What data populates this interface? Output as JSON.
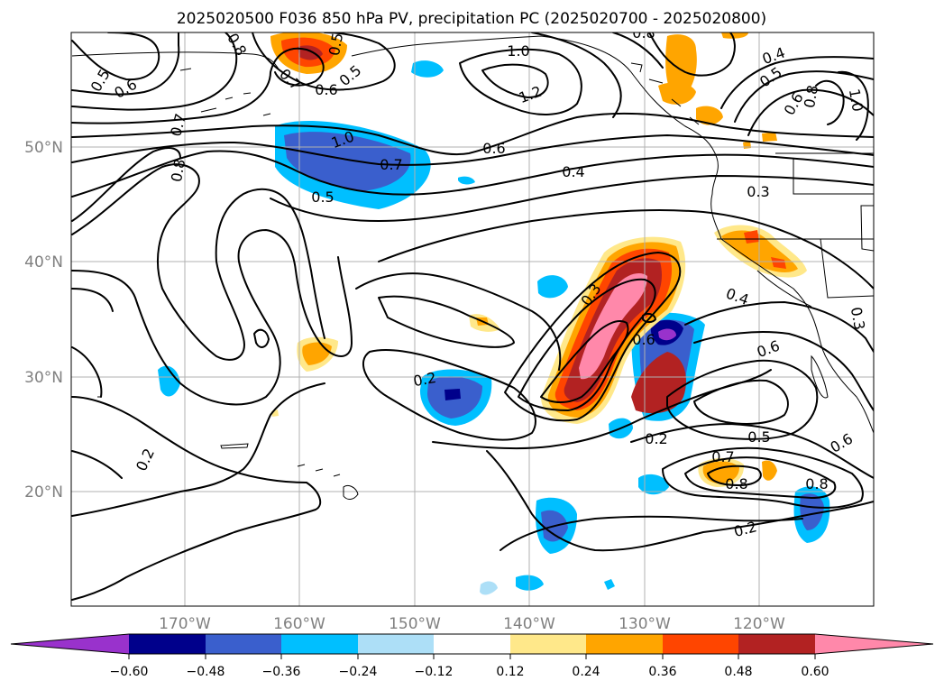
{
  "title": "2025020500 F036 850 hPa PV, precipitation PC (2025020700 - 2025020800)",
  "lat_labels": [
    "50°N",
    "40°N",
    "30°N",
    "20°N"
  ],
  "lon_labels": [
    "170°W",
    "160°W",
    "150°W",
    "140°W",
    "130°W",
    "120°W"
  ],
  "contour_labels": [
    "0.5",
    "0.6",
    "0.8",
    "0.7",
    "0.8",
    "0.5",
    "0.7",
    "0.6",
    "0.5",
    "1.0",
    "1.2",
    "0.8",
    "0.4",
    "0.5",
    "0.8",
    "0.6",
    "1.0",
    "1.0",
    "0.7",
    "0.6",
    "0.4",
    "0.5",
    "0.3",
    "0.3",
    "0.4",
    "0.6",
    "0.6",
    "0.3",
    "0.2",
    "0.2",
    "0.2",
    "0.5",
    "0.6",
    "0.7",
    "0.8",
    "0.8",
    "0.2"
  ],
  "colorbar": {
    "ticks": [
      "−0.60",
      "−0.48",
      "−0.36",
      "−0.24",
      "−0.12",
      "0.12",
      "0.24",
      "0.36",
      "0.48",
      "0.60"
    ],
    "colors": [
      "#9932CC",
      "#00008B",
      "#3A5FCD",
      "#00BFFF",
      "#ADDFF7",
      "#FFFFFF",
      "#FFE88A",
      "#FFA500",
      "#FF4500",
      "#B22222",
      "#FF88AA"
    ]
  }
}
